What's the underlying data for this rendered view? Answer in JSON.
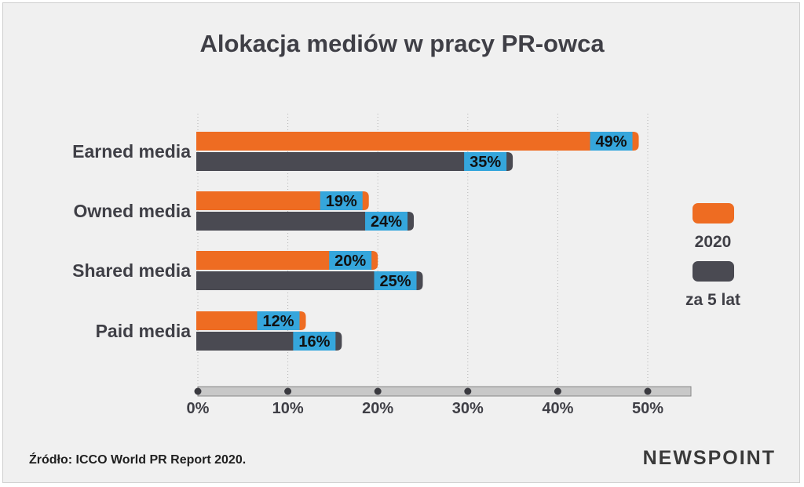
{
  "title": "Alokacja mediów w pracy PR-owca",
  "source": "Źródło: ICCO World PR Report 2020.",
  "logo": "NEWSPOINT",
  "colors": {
    "series_2020": "#ee6c22",
    "series_future": "#4a4a52",
    "label_box": "#35a6dc",
    "grid": "#b5b5b5",
    "axis_band": "#c8c8c8"
  },
  "chart_data": {
    "type": "bar",
    "orientation": "horizontal",
    "title": "Alokacja mediów w pracy PR-owca",
    "categories": [
      "Earned media",
      "Owned media",
      "Shared media",
      "Paid media"
    ],
    "series": [
      {
        "name": "2020",
        "values": [
          49,
          19,
          20,
          12
        ]
      },
      {
        "name": "za 5 lat",
        "values": [
          35,
          24,
          25,
          16
        ]
      }
    ],
    "value_unit": "%",
    "xlim": [
      0,
      50
    ],
    "xticks": [
      0,
      10,
      20,
      30,
      40,
      50
    ],
    "xtick_labels": [
      "0%",
      "10%",
      "20%",
      "30%",
      "40%",
      "50%"
    ],
    "grid": "vertical-dotted",
    "legend_position": "right"
  }
}
